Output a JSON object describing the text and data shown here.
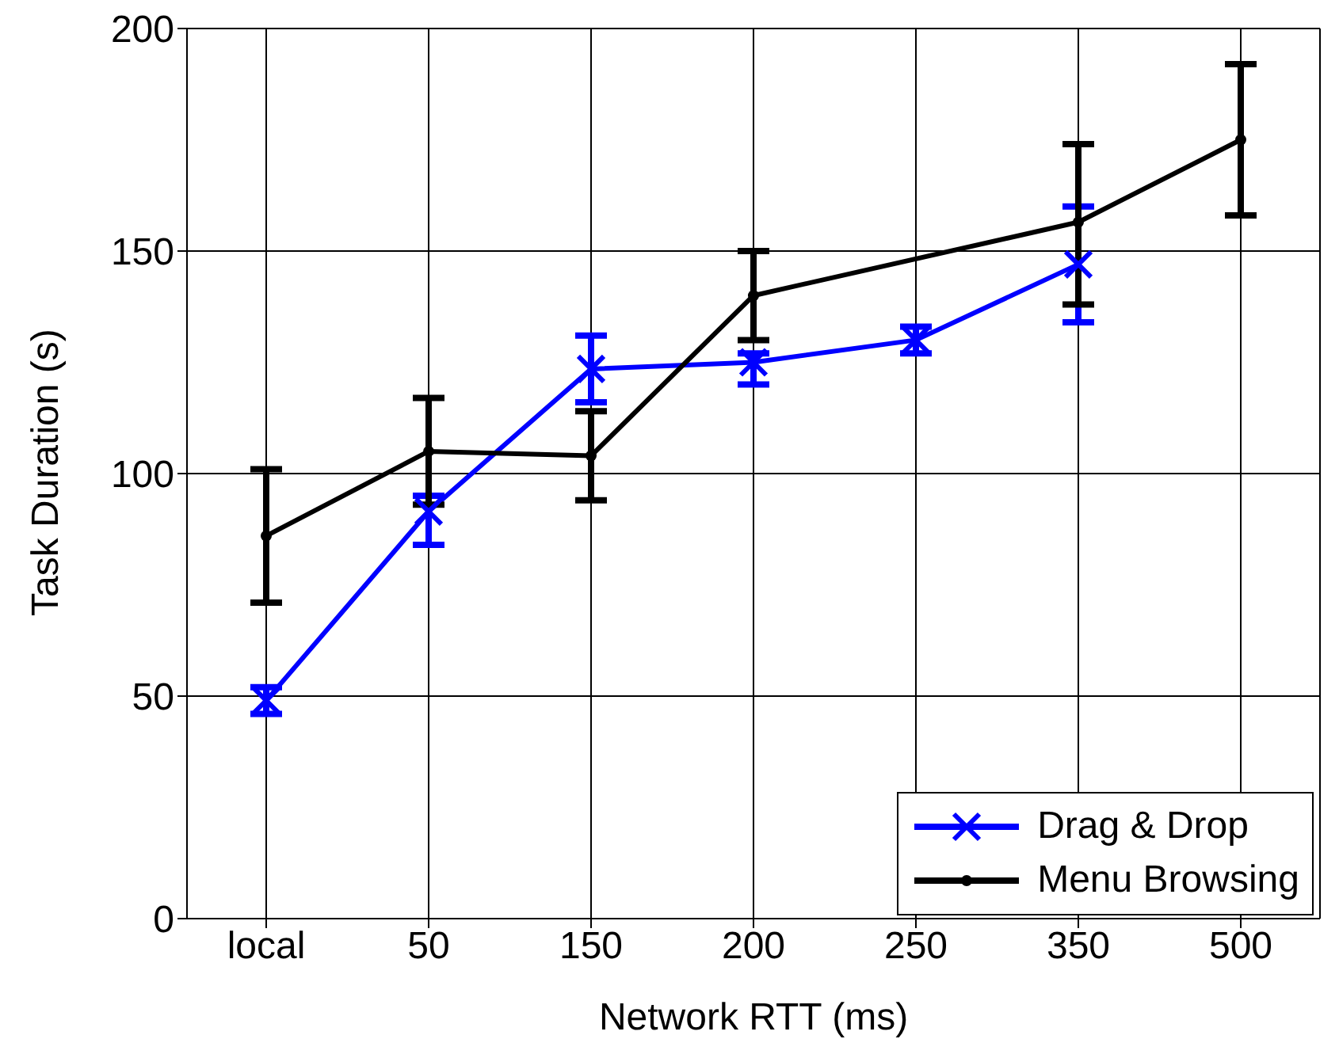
{
  "chart_data": {
    "type": "line",
    "xlabel": "Network RTT (ms)",
    "ylabel": "Task Duration (s)",
    "categories": [
      "local",
      "50",
      "150",
      "200",
      "250",
      "350",
      "500"
    ],
    "series": [
      {
        "name": "Drag & Drop",
        "color": "#0000ff",
        "marker": "cross",
        "values": [
          49,
          91.5,
          123.5,
          125,
          130,
          147,
          null
        ],
        "errors": [
          [
            46,
            52
          ],
          [
            84,
            95
          ],
          [
            116,
            131
          ],
          [
            120,
            127
          ],
          [
            127,
            133
          ],
          [
            134,
            160
          ],
          null
        ]
      },
      {
        "name": "Menu Browsing",
        "color": "#000000",
        "marker": "circle",
        "values": [
          86,
          105,
          104,
          140,
          null,
          156.5,
          175
        ],
        "errors": [
          [
            71,
            101
          ],
          [
            93,
            117
          ],
          [
            94,
            114
          ],
          [
            130,
            150
          ],
          null,
          [
            138,
            174
          ],
          [
            158,
            192
          ]
        ]
      }
    ],
    "ylim": [
      0,
      200
    ],
    "yticks": [
      0,
      50,
      100,
      150,
      200
    ],
    "grid": true,
    "legend": "bottom right"
  }
}
